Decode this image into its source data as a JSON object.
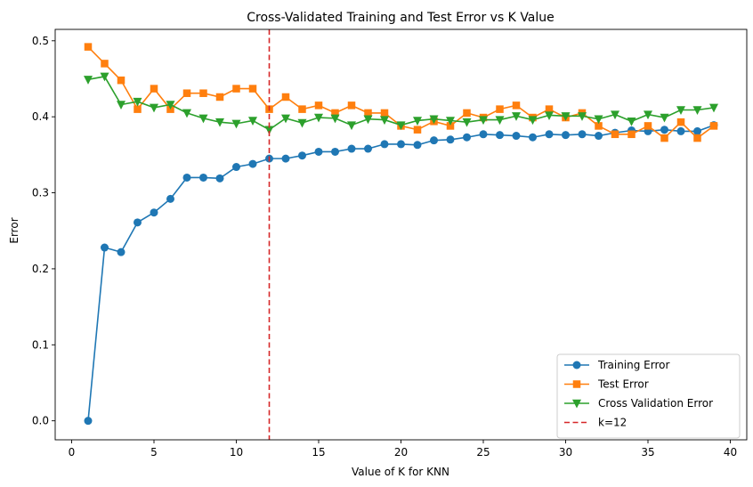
{
  "chart_data": {
    "type": "line",
    "title": "Cross-Validated Training and Test Error vs K Value",
    "xlabel": "Value of K for KNN",
    "ylabel": "Error",
    "xlim": [
      -1,
      41
    ],
    "ylim": [
      -0.025,
      0.515
    ],
    "xticks": [
      0,
      5,
      10,
      15,
      20,
      25,
      30,
      35,
      40
    ],
    "yticks": [
      0.0,
      0.1,
      0.2,
      0.3,
      0.4,
      0.5
    ],
    "xtick_labels": [
      "0",
      "5",
      "10",
      "15",
      "20",
      "25",
      "30",
      "35",
      "40"
    ],
    "ytick_labels": [
      "0.0",
      "0.1",
      "0.2",
      "0.3",
      "0.4",
      "0.5"
    ],
    "grid": false,
    "legend_position": "bottom-right",
    "x": [
      1,
      2,
      3,
      4,
      5,
      6,
      7,
      8,
      9,
      10,
      11,
      12,
      13,
      14,
      15,
      16,
      17,
      18,
      19,
      20,
      21,
      22,
      23,
      24,
      25,
      26,
      27,
      28,
      29,
      30,
      31,
      32,
      33,
      34,
      35,
      36,
      37,
      38,
      39
    ],
    "series": [
      {
        "name": "Training Error",
        "color": "#1f77b4",
        "marker": "circle",
        "values": [
          0.0,
          0.228,
          0.222,
          0.261,
          0.274,
          0.292,
          0.32,
          0.32,
          0.319,
          0.334,
          0.338,
          0.345,
          0.345,
          0.349,
          0.354,
          0.354,
          0.358,
          0.358,
          0.364,
          0.364,
          0.363,
          0.369,
          0.37,
          0.373,
          0.377,
          0.376,
          0.375,
          0.373,
          0.377,
          0.376,
          0.377,
          0.375,
          0.379,
          0.382,
          0.381,
          0.383,
          0.381,
          0.381,
          0.389
        ]
      },
      {
        "name": "Test Error",
        "color": "#ff7f0e",
        "marker": "square",
        "values": [
          0.492,
          0.47,
          0.448,
          0.41,
          0.437,
          0.41,
          0.431,
          0.431,
          0.426,
          0.437,
          0.437,
          0.41,
          0.426,
          0.41,
          0.415,
          0.405,
          0.415,
          0.405,
          0.405,
          0.388,
          0.383,
          0.394,
          0.388,
          0.405,
          0.399,
          0.41,
          0.415,
          0.399,
          0.41,
          0.399,
          0.405,
          0.388,
          0.377,
          0.377,
          0.388,
          0.372,
          0.393,
          0.372,
          0.388
        ]
      },
      {
        "name": "Cross Validation Error",
        "color": "#2ca02c",
        "marker": "triangle-down",
        "values": [
          0.449,
          0.453,
          0.416,
          0.42,
          0.412,
          0.416,
          0.405,
          0.398,
          0.393,
          0.391,
          0.395,
          0.383,
          0.398,
          0.392,
          0.399,
          0.398,
          0.389,
          0.397,
          0.396,
          0.389,
          0.395,
          0.397,
          0.395,
          0.393,
          0.396,
          0.396,
          0.401,
          0.396,
          0.402,
          0.401,
          0.401,
          0.397,
          0.403,
          0.394,
          0.403,
          0.399,
          0.409,
          0.409,
          0.412
        ]
      }
    ],
    "reference_line": {
      "name": "k=12",
      "x": 12,
      "color": "#d62728",
      "style": "dashed"
    }
  }
}
